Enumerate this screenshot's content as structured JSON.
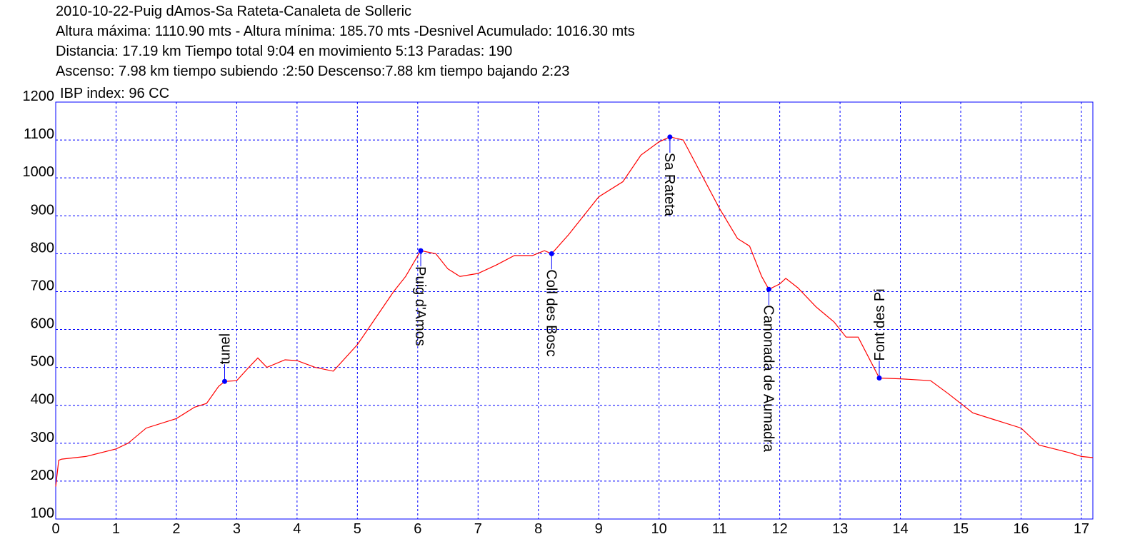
{
  "chart_data": {
    "type": "line",
    "header": [
      "2010-10-22-Puig dAmos-Sa Rateta-Canaleta de Solleric",
      "Altura máxima: 1110.90 mts - Altura mínima: 185.70 mts -Desnivel Acumulado: 1016.30 mts",
      "Distancia: 17.19 km  Tiempo total 9:04  en movimiento 5:13 Paradas: 190",
      "Ascenso: 7.98 km  tiempo subiendo :2:50  Descenso:7.88 km tiempo bajando 2:23"
    ],
    "annotation": "IBP index: 96 CC",
    "x": [
      0,
      0.05,
      0.1,
      0.5,
      1.0,
      1.2,
      1.5,
      2.0,
      2.3,
      2.5,
      2.7,
      2.8,
      3.0,
      3.2,
      3.35,
      3.5,
      3.8,
      4.0,
      4.3,
      4.6,
      5.0,
      5.3,
      5.6,
      5.8,
      6.05,
      6.3,
      6.5,
      6.7,
      7.0,
      7.3,
      7.6,
      7.9,
      8.1,
      8.22,
      8.5,
      9.0,
      9.4,
      9.7,
      10.0,
      10.18,
      10.4,
      10.7,
      11.0,
      11.3,
      11.5,
      11.7,
      11.82,
      12.0,
      12.1,
      12.3,
      12.6,
      12.9,
      13.1,
      13.3,
      13.65,
      14.0,
      14.5,
      14.8,
      15.2,
      15.6,
      16.0,
      16.3,
      16.8,
      17.0,
      17.19
    ],
    "values": [
      185.7,
      255,
      258,
      265,
      285,
      300,
      340,
      365,
      395,
      405,
      450,
      463,
      465,
      500,
      525,
      500,
      520,
      518,
      500,
      490,
      560,
      630,
      700,
      740,
      808,
      800,
      760,
      740,
      748,
      770,
      795,
      795,
      808,
      800,
      850,
      950,
      990,
      1060,
      1095,
      1108,
      1100,
      1010,
      920,
      840,
      820,
      740,
      706,
      720,
      735,
      710,
      660,
      620,
      580,
      580,
      472,
      470,
      465,
      430,
      380,
      360,
      340,
      295,
      275,
      265,
      262
    ],
    "color": "#ff0000",
    "waypoints": [
      {
        "label": "tunel",
        "x": 2.8,
        "y": 463,
        "side": "above"
      },
      {
        "label": "Puig d'Amos",
        "x": 6.05,
        "y": 808,
        "side": "below"
      },
      {
        "label": "Coll des Bosc",
        "x": 8.22,
        "y": 800,
        "side": "below"
      },
      {
        "label": "Sa Rateta",
        "x": 10.18,
        "y": 1108,
        "side": "below"
      },
      {
        "label": "Canonada de Aumadra",
        "x": 11.82,
        "y": 706,
        "side": "below"
      },
      {
        "label": "Font des Pi",
        "x": 13.65,
        "y": 472,
        "side": "above"
      }
    ],
    "waypoint_color": "#0000ff",
    "xlim": [
      0,
      17.19
    ],
    "xticks": [
      0,
      1,
      2,
      3,
      4,
      5,
      6,
      7,
      8,
      9,
      10,
      11,
      12,
      13,
      14,
      15,
      16,
      17
    ],
    "ylim": [
      100,
      1200
    ],
    "yticks": [
      100,
      200,
      300,
      400,
      500,
      600,
      700,
      800,
      900,
      1000,
      1100,
      1200
    ],
    "grid": true
  }
}
